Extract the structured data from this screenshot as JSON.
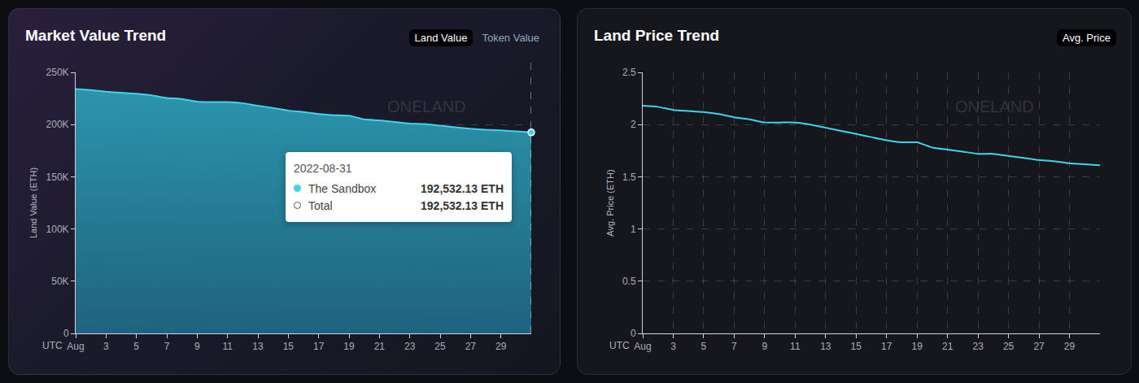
{
  "chart_data": [
    {
      "type": "area",
      "title": "Market Value Trend",
      "buttons": [
        "Land Value",
        "Token Value"
      ],
      "watermark": "ONELAND",
      "x_label": "UTC",
      "ylabel": "Land Value (ETH)",
      "color": "#3fd4ec",
      "x": [
        1,
        2,
        3,
        4,
        5,
        6,
        7,
        8,
        9,
        10,
        11,
        12,
        13,
        14,
        15,
        16,
        17,
        18,
        19,
        20,
        21,
        22,
        23,
        24,
        25,
        26,
        27,
        28,
        29,
        30,
        31
      ],
      "values": [
        234000,
        233000,
        231500,
        230500,
        229500,
        228000,
        225500,
        224500,
        222000,
        221500,
        221500,
        220500,
        218000,
        216000,
        213500,
        212000,
        210000,
        209000,
        208500,
        205000,
        204000,
        202500,
        201000,
        200500,
        199000,
        197500,
        196000,
        195000,
        194500,
        193500,
        192532.13
      ],
      "xlim": [
        1,
        31
      ],
      "xticks": [
        {
          "value": 1,
          "label": "Aug"
        },
        3,
        5,
        7,
        9,
        11,
        13,
        15,
        17,
        19,
        21,
        23,
        25,
        27,
        29
      ],
      "ylim": [
        0,
        250000
      ],
      "yticks": [
        0,
        {
          "value": 50000,
          "label": "50K"
        },
        {
          "value": 100000,
          "label": "100K"
        },
        {
          "value": 150000,
          "label": "150K"
        },
        {
          "value": 200000,
          "label": "200K"
        },
        {
          "value": 250000,
          "label": "250K"
        }
      ],
      "grid": "y",
      "tooltip": {
        "title": "2022-08-31",
        "rows": [
          {
            "name": "The Sandbox",
            "label": "192,532.13 ETH"
          },
          {
            "name": "Total",
            "label": "192,532.13 ETH"
          }
        ]
      }
    },
    {
      "type": "line",
      "title": "Land Price Trend",
      "buttons": [
        "Avg. Price"
      ],
      "watermark": "ONELAND",
      "x_label": "UTC",
      "ylabel": "Avg. Price (ETH)",
      "color": "#3fd4ec",
      "x": [
        1,
        2,
        3,
        4,
        5,
        6,
        7,
        8,
        9,
        10,
        11,
        12,
        13,
        14,
        15,
        16,
        17,
        18,
        19,
        20,
        21,
        22,
        23,
        24,
        25,
        26,
        27,
        28,
        29,
        30,
        31
      ],
      "values": [
        2.18,
        2.17,
        2.14,
        2.13,
        2.12,
        2.1,
        2.07,
        2.05,
        2.02,
        2.02,
        2.02,
        2.0,
        1.97,
        1.94,
        1.91,
        1.88,
        1.85,
        1.83,
        1.83,
        1.78,
        1.76,
        1.74,
        1.72,
        1.72,
        1.7,
        1.68,
        1.66,
        1.65,
        1.63,
        1.62,
        1.61
      ],
      "xlim": [
        1,
        31
      ],
      "xticks": [
        {
          "value": 1,
          "label": "Aug"
        },
        3,
        5,
        7,
        9,
        11,
        13,
        15,
        17,
        19,
        21,
        23,
        25,
        27,
        29
      ],
      "ylim": [
        0,
        2.5
      ],
      "yticks": [
        0,
        0.5,
        1,
        1.5,
        2,
        2.5
      ],
      "grid": true
    }
  ]
}
